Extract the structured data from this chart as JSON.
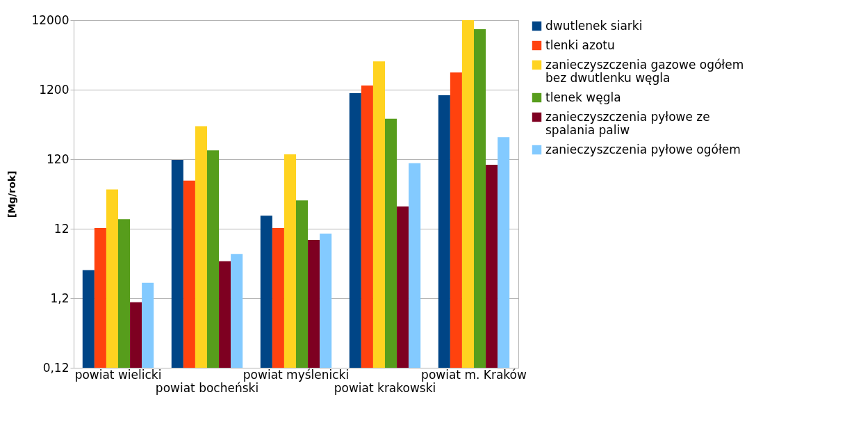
{
  "chart_data": {
    "type": "bar",
    "ylabel": "[Mg/rok]",
    "log": true,
    "grid": "y",
    "legend": "right",
    "categories": [
      "powiat wielicki",
      "powiat bocheński",
      "powiat myślenicki",
      "powiat krakowski",
      "powiat m. Kraków"
    ],
    "ylim": [
      0.12,
      12000
    ],
    "yticks": [
      {
        "value": 0.12,
        "label": "0,12"
      },
      {
        "value": 1.2,
        "label": "1,2"
      },
      12,
      120,
      1200,
      12000
    ],
    "series": [
      {
        "name": "dwutlenek siarki",
        "color": "#004586",
        "values": [
          3.05,
          117,
          18.5,
          1070,
          1000
        ]
      },
      {
        "name": "tlenki azotu",
        "color": "#ff420e",
        "values": [
          12.3,
          59,
          12.3,
          1375,
          2120
        ]
      },
      {
        "name": "zanieczyszczenia gazowe ogółem bez dwutlenku węgla",
        "color": "#ffd320",
        "values": [
          44,
          358,
          141,
          3060,
          12000
        ]
      },
      {
        "name": "tlenek węgla",
        "color": "#579d1c",
        "values": [
          16.5,
          161,
          30.6,
          460,
          8900
        ]
      },
      {
        "name": "zanieczyszczenia pyłowe ze spalania paliw",
        "color": "#7e0021",
        "values": [
          1.05,
          4.1,
          8.3,
          25,
          100
        ]
      },
      {
        "name": "zanieczyszczenia pyłowe ogółem",
        "color": "#83caff",
        "values": [
          2.0,
          5.2,
          10.2,
          105,
          249
        ]
      }
    ]
  }
}
